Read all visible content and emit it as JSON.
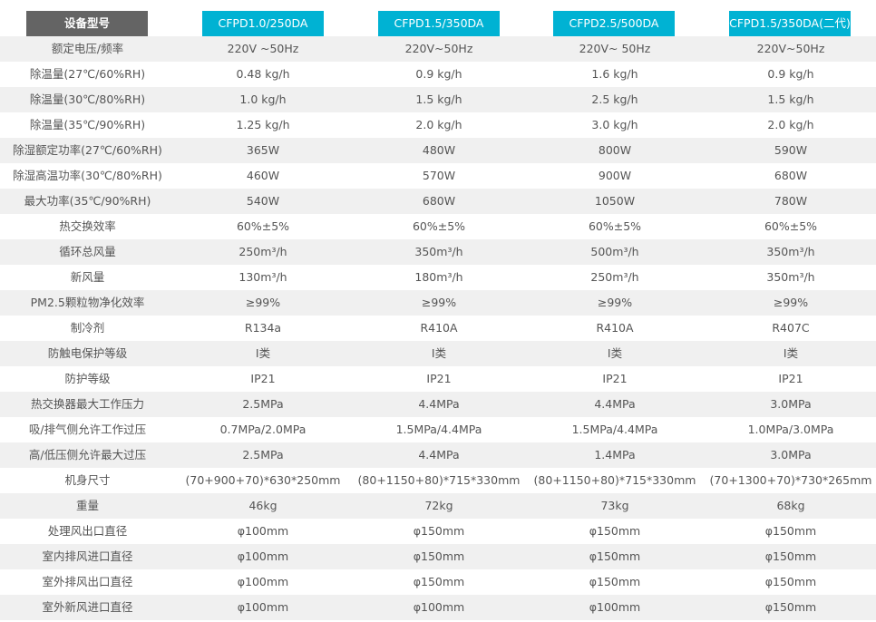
{
  "colors": {
    "label_header_bg": "#646464",
    "model_header_bg": "#00b2d3",
    "stripe": "#f0f0f0",
    "text": "#555555"
  },
  "header": {
    "label": "设备型号",
    "models": [
      "CFPD1.0/250DA",
      "CFPD1.5/350DA",
      "CFPD2.5/500DA",
      "CFPD1.5/350DA(二代)"
    ]
  },
  "rows": [
    {
      "label": "额定电压/频率",
      "values": [
        "220V ~50Hz",
        "220V~50Hz",
        "220V~ 50Hz",
        "220V~50Hz"
      ]
    },
    {
      "label": "除温量(27℃/60%RH)",
      "values": [
        "0.48 kg/h",
        "0.9 kg/h",
        "1.6 kg/h",
        "0.9 kg/h"
      ]
    },
    {
      "label": "除温量(30℃/80%RH)",
      "values": [
        "1.0 kg/h",
        "1.5 kg/h",
        "2.5 kg/h",
        "1.5 kg/h"
      ]
    },
    {
      "label": "除温量(35℃/90%RH)",
      "values": [
        "1.25 kg/h",
        "2.0 kg/h",
        "3.0 kg/h",
        "2.0 kg/h"
      ]
    },
    {
      "label": "除湿额定功率(27℃/60%RH)",
      "values": [
        "365W",
        "480W",
        "800W",
        "590W"
      ]
    },
    {
      "label": "除湿高温功率(30℃/80%RH)",
      "values": [
        "460W",
        "570W",
        "900W",
        "680W"
      ]
    },
    {
      "label": "最大功率(35℃/90%RH)",
      "values": [
        "540W",
        "680W",
        "1050W",
        "780W"
      ]
    },
    {
      "label": "热交换效率",
      "values": [
        "60%±5%",
        "60%±5%",
        "60%±5%",
        "60%±5%"
      ]
    },
    {
      "label": "循环总风量",
      "values": [
        "250m³/h",
        "350m³/h",
        "500m³/h",
        "350m³/h"
      ]
    },
    {
      "label": "新风量",
      "values": [
        "130m³/h",
        "180m³/h",
        "250m³/h",
        "350m³/h"
      ]
    },
    {
      "label": "PM2.5颗粒物净化效率",
      "values": [
        "≥99%",
        "≥99%",
        "≥99%",
        "≥99%"
      ]
    },
    {
      "label": "制冷剂",
      "values": [
        "R134a",
        "R410A",
        "R410A",
        "R407C"
      ]
    },
    {
      "label": "防触电保护等级",
      "values": [
        "I类",
        "I类",
        "I类",
        "I类"
      ]
    },
    {
      "label": "防护等级",
      "values": [
        "IP21",
        "IP21",
        "IP21",
        "IP21"
      ]
    },
    {
      "label": "热交换器最大工作压力",
      "values": [
        "2.5MPa",
        "4.4MPa",
        "4.4MPa",
        "3.0MPa"
      ]
    },
    {
      "label": "吸/排气侧允许工作过压",
      "values": [
        "0.7MPa/2.0MPa",
        "1.5MPa/4.4MPa",
        "1.5MPa/4.4MPa",
        "1.0MPa/3.0MPa"
      ]
    },
    {
      "label": "高/低压侧允许最大过压",
      "values": [
        "2.5MPa",
        "4.4MPa",
        "1.4MPa",
        "3.0MPa"
      ]
    },
    {
      "label": "机身尺寸",
      "values": [
        "(70+900+70)*630*250mm",
        "(80+1150+80)*715*330mm",
        "(80+1150+80)*715*330mm",
        "(70+1300+70)*730*265mm"
      ]
    },
    {
      "label": "重量",
      "values": [
        "46kg",
        "72kg",
        "73kg",
        "68kg"
      ]
    },
    {
      "label": "处理风出口直径",
      "values": [
        "φ100mm",
        "φ150mm",
        "φ150mm",
        "φ150mm"
      ]
    },
    {
      "label": "室内排风进口直径",
      "values": [
        "φ100mm",
        "φ150mm",
        "φ150mm",
        "φ150mm"
      ]
    },
    {
      "label": "室外排风出口直径",
      "values": [
        "φ100mm",
        "φ150mm",
        "φ150mm",
        "φ150mm"
      ]
    },
    {
      "label": "室外新风进口直径",
      "values": [
        "φ100mm",
        "φ100mm",
        "φ100mm",
        "φ150mm"
      ]
    }
  ]
}
